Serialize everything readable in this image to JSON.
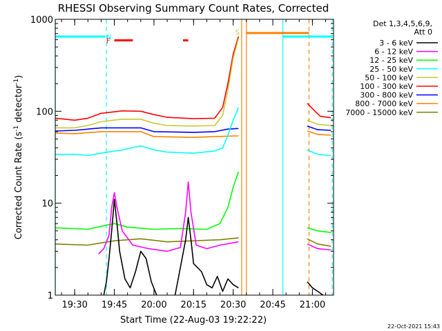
{
  "chart_data": {
    "type": "line",
    "title": "RHESSI Observing Summary Count Rates, Corrected",
    "xlabel": "Start Time (22-Aug-03 19:22:22)",
    "ylabel_main": "Corrected Count Rate (s",
    "ylabel_sup1": "-1",
    "ylabel_mid": " detector",
    "ylabel_sup2": "-1",
    "ylabel_end": ")",
    "y_scale": "log",
    "ylim": [
      1,
      1000
    ],
    "xlim_minutes": [
      -7.37,
      98.0
    ],
    "x_unit_note": "minutes after 19:30",
    "y_ticks": [
      {
        "v": 1,
        "label": "1"
      },
      {
        "v": 10,
        "label": "10"
      },
      {
        "v": 100,
        "label": "100"
      },
      {
        "v": 1000,
        "label": "1000"
      }
    ],
    "x_ticks": [
      {
        "m": 0,
        "label": "19:30"
      },
      {
        "m": 15,
        "label": "19:45"
      },
      {
        "m": 30,
        "label": "20:00"
      },
      {
        "m": 45,
        "label": "20:15"
      },
      {
        "m": 60,
        "label": "20:30"
      },
      {
        "m": 75,
        "label": "20:45"
      },
      {
        "m": 90,
        "label": "21:00"
      }
    ],
    "legend": {
      "header": [
        "Det 1,3,4,5,6,9,",
        "Att 0"
      ],
      "items": [
        {
          "label": "3 - 6 keV",
          "color": "#000000"
        },
        {
          "label": "6 - 12 keV",
          "color": "#ff00ff"
        },
        {
          "label": "12 - 25 keV",
          "color": "#00ff00"
        },
        {
          "label": "25 - 50 keV",
          "color": "#00ffff"
        },
        {
          "label": "50 - 100 keV",
          "color": "#c8c832"
        },
        {
          "label": "100 - 300 keV",
          "color": "#ff0000"
        },
        {
          "label": "300 - 800 keV",
          "color": "#0000ff"
        },
        {
          "label": "800 - 7000 keV",
          "color": "#ff8000"
        },
        {
          "label": "7000 - 15000 keV",
          "color": "#808000"
        }
      ]
    },
    "series": [
      {
        "name": "100 - 300 keV",
        "color": "#ff0000",
        "segments": [
          [
            [
              -7.3,
              84
            ],
            [
              0,
              80
            ],
            [
              5,
              84
            ],
            [
              10,
              95
            ],
            [
              18,
              101
            ],
            [
              25,
              100
            ],
            [
              30,
              92
            ],
            [
              35,
              86
            ],
            [
              45,
              83
            ],
            [
              53,
              84
            ],
            [
              56,
              110
            ],
            [
              58,
              200
            ],
            [
              60,
              420
            ],
            [
              62,
              650
            ]
          ],
          [
            [
              88,
              122
            ],
            [
              91,
              100
            ],
            [
              93,
              88
            ],
            [
              97,
              85
            ]
          ]
        ]
      },
      {
        "name": "50 - 100 keV",
        "color": "#c8c832",
        "segments": [
          [
            [
              -7.3,
              66
            ],
            [
              0,
              66
            ],
            [
              5,
              70
            ],
            [
              10,
              77
            ],
            [
              18,
              82
            ],
            [
              25,
              82
            ],
            [
              30,
              74
            ],
            [
              35,
              70
            ],
            [
              45,
              69
            ],
            [
              53,
              70
            ],
            [
              56,
              90
            ],
            [
              58,
              170
            ],
            [
              60,
              380
            ],
            [
              62,
              620
            ]
          ],
          [
            [
              88,
              80
            ],
            [
              92,
              72
            ],
            [
              97,
              70
            ]
          ]
        ]
      },
      {
        "name": "300 - 800 keV",
        "color": "#0000ff",
        "segments": [
          [
            [
              -7.3,
              61
            ],
            [
              0,
              62
            ],
            [
              10,
              66
            ],
            [
              25,
              66
            ],
            [
              30,
              60
            ],
            [
              45,
              59
            ],
            [
              53,
              60
            ],
            [
              58,
              64
            ],
            [
              62,
              65
            ]
          ],
          [
            [
              88,
              69
            ],
            [
              92,
              63
            ],
            [
              97,
              62
            ]
          ]
        ]
      },
      {
        "name": "800 - 7000 keV",
        "color": "#ff8000",
        "segments": [
          [
            [
              -7.3,
              58
            ],
            [
              0,
              57
            ],
            [
              10,
              60
            ],
            [
              25,
              60
            ],
            [
              30,
              53
            ],
            [
              45,
              52
            ],
            [
              53,
              53
            ],
            [
              62,
              54
            ]
          ],
          [
            [
              88,
              61
            ],
            [
              92,
              56
            ],
            [
              97,
              55
            ]
          ]
        ]
      },
      {
        "name": "25 - 50 keV",
        "color": "#00ffff",
        "segments": [
          [
            [
              -7.3,
              34
            ],
            [
              0,
              34
            ],
            [
              5,
              33
            ],
            [
              10,
              35
            ],
            [
              18,
              38
            ],
            [
              25,
              42
            ],
            [
              30,
              38
            ],
            [
              35,
              36
            ],
            [
              45,
              35
            ],
            [
              53,
              37
            ],
            [
              56,
              40
            ],
            [
              58,
              55
            ],
            [
              60,
              80
            ],
            [
              62,
              110
            ]
          ],
          [
            [
              88,
              38
            ],
            [
              92,
              34
            ],
            [
              97,
              33
            ]
          ]
        ]
      },
      {
        "name": "12 - 25 keV",
        "color": "#00ff00",
        "segments": [
          [
            [
              -7.3,
              5.4
            ],
            [
              5,
              5.2
            ],
            [
              10,
              5.6
            ],
            [
              15,
              6.0
            ],
            [
              20,
              5.5
            ],
            [
              30,
              5.2
            ],
            [
              40,
              5.3
            ],
            [
              50,
              5.2
            ],
            [
              55,
              6.0
            ],
            [
              58,
              9
            ],
            [
              60,
              15
            ],
            [
              62,
              22
            ]
          ],
          [
            [
              88,
              5.4
            ],
            [
              92,
              5.0
            ],
            [
              97,
              4.8
            ]
          ]
        ]
      },
      {
        "name": "7000 - 15000 keV",
        "color": "#808000",
        "segments": [
          [
            [
              -7.3,
              3.6
            ],
            [
              5,
              3.5
            ],
            [
              10,
              3.7
            ],
            [
              15,
              3.9
            ],
            [
              25,
              4.1
            ],
            [
              35,
              3.8
            ],
            [
              45,
              3.9
            ],
            [
              55,
              4.0
            ],
            [
              62,
              4.2
            ]
          ],
          [
            [
              88,
              4.1
            ],
            [
              92,
              3.6
            ],
            [
              97,
              3.4
            ]
          ]
        ]
      },
      {
        "name": "6 - 12 keV",
        "color": "#ff00ff",
        "segments": [
          [
            [
              9,
              2.8
            ],
            [
              11,
              3.2
            ],
            [
              13,
              4.5
            ],
            [
              14,
              9
            ],
            [
              15,
              13
            ],
            [
              16,
              9
            ],
            [
              18,
              5
            ],
            [
              22,
              3.5
            ],
            [
              28,
              3.2
            ],
            [
              35,
              3.0
            ],
            [
              40,
              3.3
            ],
            [
              42,
              8
            ],
            [
              43,
              17
            ],
            [
              44,
              8
            ],
            [
              46,
              3.5
            ],
            [
              50,
              3.2
            ],
            [
              55,
              3.5
            ],
            [
              62,
              3.8
            ]
          ],
          [
            [
              88,
              3.6
            ],
            [
              92,
              3.2
            ],
            [
              97,
              3.1
            ]
          ]
        ]
      },
      {
        "name": "3 - 6 keV",
        "color": "#000000",
        "segments": [
          [
            [
              11,
              1.0
            ],
            [
              12,
              1.4
            ],
            [
              13,
              2.5
            ],
            [
              14,
              5
            ],
            [
              15,
              11
            ],
            [
              16,
              6
            ],
            [
              17,
              3
            ],
            [
              19,
              1.5
            ],
            [
              21,
              1.2
            ],
            [
              23,
              1.8
            ],
            [
              25,
              3
            ],
            [
              27,
              2.5
            ],
            [
              29,
              1.4
            ],
            [
              31,
              1.0
            ]
          ],
          [
            [
              38,
              1.0
            ],
            [
              40,
              2
            ],
            [
              42,
              4
            ],
            [
              43,
              7
            ],
            [
              44,
              4
            ],
            [
              45,
              2.2
            ],
            [
              48,
              1.8
            ],
            [
              50,
              1.3
            ],
            [
              52,
              1.2
            ],
            [
              54,
              1.6
            ],
            [
              56,
              1.1
            ],
            [
              58,
              1.5
            ],
            [
              60,
              1.3
            ],
            [
              62,
              1.2
            ]
          ],
          [
            [
              88,
              1.4
            ],
            [
              90,
              1.2
            ],
            [
              92,
              1.1
            ],
            [
              94,
              1.0
            ]
          ]
        ]
      }
    ],
    "vertical_lines": [
      {
        "m": -7.33,
        "color": "#00ffff",
        "style": "solid"
      },
      {
        "m": 12.0,
        "color": "#00ffff",
        "style": "dashed"
      },
      {
        "m": 63.2,
        "color": "#ff8000",
        "style": "solid"
      },
      {
        "m": 65.0,
        "color": "#ff8000",
        "style": "solid"
      },
      {
        "m": 78.8,
        "color": "#00ffff",
        "style": "solid"
      },
      {
        "m": 88.7,
        "color": "#ff8000",
        "style": "dashed"
      },
      {
        "m": 97.5,
        "color": "#00ffff",
        "style": "dashed"
      }
    ],
    "bars": [
      {
        "from": -7.3,
        "to": 11.5,
        "y": 650,
        "color": "#00ffff"
      },
      {
        "from": 78.8,
        "to": 97.5,
        "y": 650,
        "color": "#00ffff"
      },
      {
        "from": 15.0,
        "to": 22.0,
        "y": 590,
        "color": "#ff0000"
      },
      {
        "from": 41.0,
        "to": 43.0,
        "y": 590,
        "color": "#ff0000"
      },
      {
        "from": 65.0,
        "to": 88.7,
        "y": 710,
        "color": "#ff8000"
      }
    ],
    "flag_labels": [
      {
        "text": "N",
        "m": 13.0,
        "y": 650,
        "color": "#00ffff"
      },
      {
        "text": "F",
        "m": 12.7,
        "y": 590,
        "color": "#ff0000"
      },
      {
        "text": "S",
        "m": 61.6,
        "y": 730,
        "color": "#c8c832"
      }
    ],
    "footer": "22-Oct-2021 15:43"
  }
}
